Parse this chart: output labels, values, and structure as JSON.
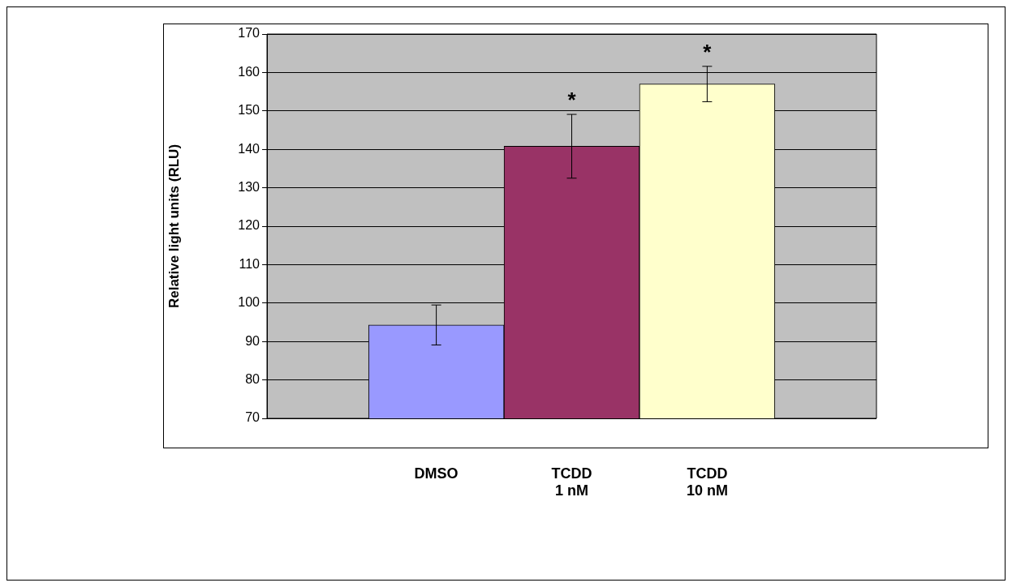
{
  "chart_data": {
    "type": "bar",
    "categories": [
      "DMSO",
      "TCDD 1 nM",
      "TCDD 10 nM"
    ],
    "values": [
      94.3,
      140.8,
      157.0
    ],
    "colors": [
      "#9999ff",
      "#993366",
      "#ffffcc"
    ],
    "errors": [
      5.2,
      8.3,
      4.6
    ],
    "ylabel": "Relative light units (RLU)",
    "ylim": [
      70,
      170
    ],
    "yticks": [
      70,
      80,
      90,
      100,
      110,
      120,
      130,
      140,
      150,
      160,
      170
    ],
    "grid": "y",
    "annotations": [
      {
        "text": "*",
        "x": "TCDD 1 nM",
        "y": 149.1
      },
      {
        "text": "*",
        "x": "TCDD 10 nM",
        "y": 161.7
      }
    ]
  }
}
